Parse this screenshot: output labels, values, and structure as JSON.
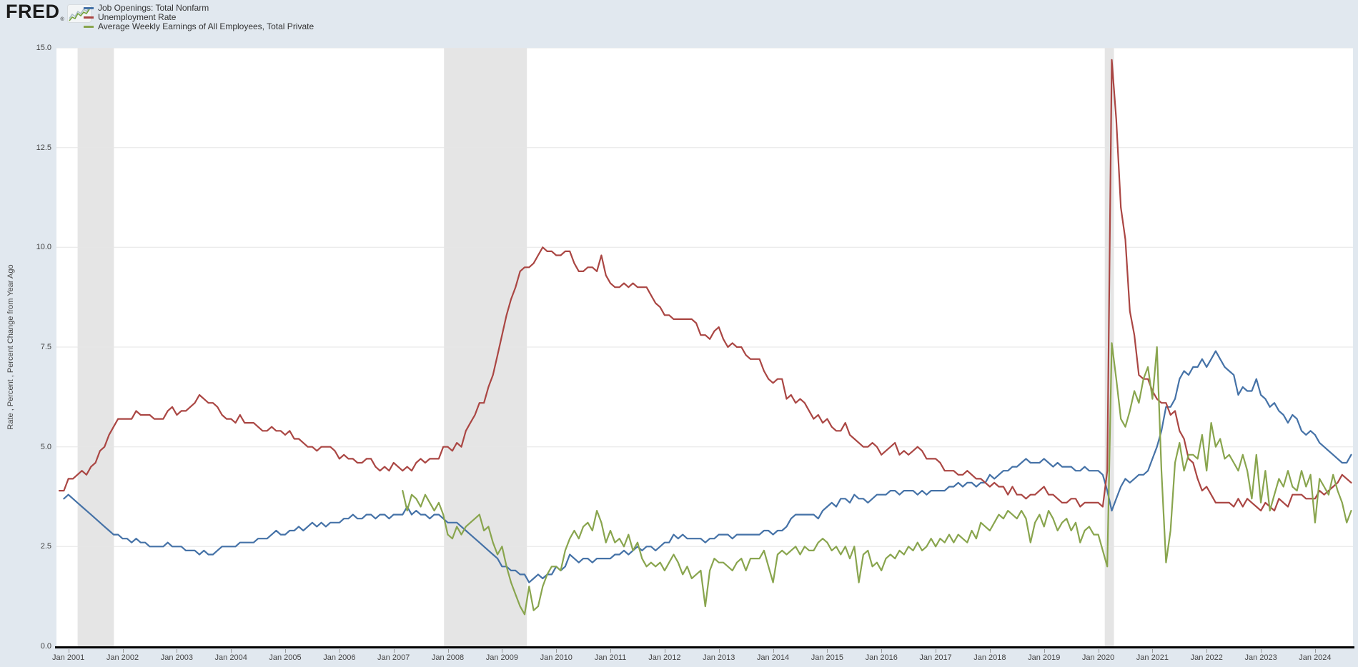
{
  "logo": {
    "text": "FRED",
    "registered": "®",
    "icon": "fred-squiggle-chart-icon"
  },
  "legend": {
    "items": [
      {
        "label": "Job Openings: Total Nonfarm",
        "color": "#4572a7"
      },
      {
        "label": "Unemployment Rate",
        "color": "#aa4643"
      },
      {
        "label": "Average Weekly Earnings of All Employees, Total Private",
        "color": "#89a54e"
      }
    ]
  },
  "y_axis": {
    "title": "Rate , Percent , Percent Change from Year Ago",
    "ticks": [
      {
        "label": "0.0",
        "value": 0
      },
      {
        "label": "2.5",
        "value": 2.5
      },
      {
        "label": "5.0",
        "value": 5
      },
      {
        "label": "7.5",
        "value": 7.5
      },
      {
        "label": "10.0",
        "value": 10
      },
      {
        "label": "12.5",
        "value": 12.5
      },
      {
        "label": "15.0",
        "value": 15
      }
    ]
  },
  "x_axis": {
    "ticks": [
      {
        "label": "Jan 2001",
        "year": 2001
      },
      {
        "label": "Jan 2002",
        "year": 2002
      },
      {
        "label": "Jan 2003",
        "year": 2003
      },
      {
        "label": "Jan 2004",
        "year": 2004
      },
      {
        "label": "Jan 2005",
        "year": 2005
      },
      {
        "label": "Jan 2006",
        "year": 2006
      },
      {
        "label": "Jan 2007",
        "year": 2007
      },
      {
        "label": "Jan 2008",
        "year": 2008
      },
      {
        "label": "Jan 2009",
        "year": 2009
      },
      {
        "label": "Jan 2010",
        "year": 2010
      },
      {
        "label": "Jan 2011",
        "year": 2011
      },
      {
        "label": "Jan 2012",
        "year": 2012
      },
      {
        "label": "Jan 2013",
        "year": 2013
      },
      {
        "label": "Jan 2014",
        "year": 2014
      },
      {
        "label": "Jan 2015",
        "year": 2015
      },
      {
        "label": "Jan 2016",
        "year": 2016
      },
      {
        "label": "Jan 2017",
        "year": 2017
      },
      {
        "label": "Jan 2018",
        "year": 2018
      },
      {
        "label": "Jan 2019",
        "year": 2019
      },
      {
        "label": "Jan 2020",
        "year": 2020
      },
      {
        "label": "Jan 2021",
        "year": 2021
      },
      {
        "label": "Jan 2022",
        "year": 2022
      },
      {
        "label": "Jan 2023",
        "year": 2023
      },
      {
        "label": "Jan 2024",
        "year": 2024
      }
    ]
  },
  "chart_data": {
    "type": "line",
    "title": "",
    "xlabel": "",
    "ylabel": "Rate , Percent , Percent Change from Year Ago",
    "xlim": [
      2000.78,
      2024.7
    ],
    "ylim": [
      0,
      15
    ],
    "grid": "horizontal",
    "gridlines": [
      2.5,
      5,
      7.5,
      10,
      12.5,
      15
    ],
    "grid_color": "#e6e6e6",
    "band_color": "#e5e5e5",
    "recession_bands": [
      {
        "start": 2001.17,
        "end": 2001.84
      },
      {
        "start": 2007.93,
        "end": 2009.46
      },
      {
        "start": 2020.12,
        "end": 2020.29
      }
    ],
    "series": [
      {
        "name": "Job Openings: Total Nonfarm",
        "color": "#4572a7",
        "start_year": 2000,
        "start_month": 12,
        "values": [
          3.7,
          3.8,
          3.7,
          3.6,
          3.5,
          3.4,
          3.3,
          3.2,
          3.1,
          3.0,
          2.9,
          2.8,
          2.8,
          2.7,
          2.7,
          2.6,
          2.7,
          2.6,
          2.6,
          2.5,
          2.5,
          2.5,
          2.5,
          2.6,
          2.5,
          2.5,
          2.5,
          2.4,
          2.4,
          2.4,
          2.3,
          2.4,
          2.3,
          2.3,
          2.4,
          2.5,
          2.5,
          2.5,
          2.5,
          2.6,
          2.6,
          2.6,
          2.6,
          2.7,
          2.7,
          2.7,
          2.8,
          2.9,
          2.8,
          2.8,
          2.9,
          2.9,
          3.0,
          2.9,
          3.0,
          3.1,
          3.0,
          3.1,
          3.0,
          3.1,
          3.1,
          3.1,
          3.2,
          3.2,
          3.3,
          3.2,
          3.2,
          3.3,
          3.3,
          3.2,
          3.3,
          3.3,
          3.2,
          3.3,
          3.3,
          3.3,
          3.5,
          3.3,
          3.4,
          3.3,
          3.3,
          3.2,
          3.3,
          3.3,
          3.2,
          3.1,
          3.1,
          3.1,
          3.0,
          2.9,
          2.8,
          2.7,
          2.6,
          2.5,
          2.4,
          2.3,
          2.2,
          2.0,
          2.0,
          1.9,
          1.9,
          1.8,
          1.8,
          1.6,
          1.7,
          1.8,
          1.7,
          1.8,
          1.8,
          2.0,
          1.9,
          2.0,
          2.3,
          2.2,
          2.1,
          2.2,
          2.2,
          2.1,
          2.2,
          2.2,
          2.2,
          2.2,
          2.3,
          2.3,
          2.4,
          2.3,
          2.4,
          2.5,
          2.4,
          2.5,
          2.5,
          2.4,
          2.5,
          2.6,
          2.6,
          2.8,
          2.7,
          2.8,
          2.7,
          2.7,
          2.7,
          2.7,
          2.6,
          2.7,
          2.7,
          2.8,
          2.8,
          2.8,
          2.7,
          2.8,
          2.8,
          2.8,
          2.8,
          2.8,
          2.8,
          2.9,
          2.9,
          2.8,
          2.9,
          2.9,
          3.0,
          3.2,
          3.3,
          3.3,
          3.3,
          3.3,
          3.3,
          3.2,
          3.4,
          3.5,
          3.6,
          3.5,
          3.7,
          3.7,
          3.6,
          3.8,
          3.7,
          3.7,
          3.6,
          3.7,
          3.8,
          3.8,
          3.8,
          3.9,
          3.9,
          3.8,
          3.9,
          3.9,
          3.9,
          3.8,
          3.9,
          3.8,
          3.9,
          3.9,
          3.9,
          3.9,
          4.0,
          4.0,
          4.1,
          4.0,
          4.1,
          4.1,
          4.0,
          4.1,
          4.1,
          4.3,
          4.2,
          4.3,
          4.4,
          4.4,
          4.5,
          4.5,
          4.6,
          4.7,
          4.6,
          4.6,
          4.6,
          4.7,
          4.6,
          4.5,
          4.6,
          4.5,
          4.5,
          4.5,
          4.4,
          4.4,
          4.5,
          4.4,
          4.4,
          4.4,
          4.3,
          3.9,
          3.4,
          3.7,
          4.0,
          4.2,
          4.1,
          4.2,
          4.3,
          4.3,
          4.4,
          4.7,
          5.0,
          5.4,
          6.0,
          6.0,
          6.2,
          6.7,
          6.9,
          6.8,
          7.0,
          7.0,
          7.2,
          7.0,
          7.2,
          7.4,
          7.2,
          7.0,
          6.9,
          6.8,
          6.3,
          6.5,
          6.4,
          6.4,
          6.7,
          6.3,
          6.2,
          6.0,
          6.1,
          5.9,
          5.8,
          5.6,
          5.8,
          5.7,
          5.4,
          5.3,
          5.4,
          5.3,
          5.1,
          5.0,
          4.9,
          4.8,
          4.7,
          4.6,
          4.6,
          4.8
        ]
      },
      {
        "name": "Unemployment Rate",
        "color": "#aa4643",
        "start_year": 2000,
        "start_month": 11,
        "values": [
          3.9,
          3.9,
          4.2,
          4.2,
          4.3,
          4.4,
          4.3,
          4.5,
          4.6,
          4.9,
          5.0,
          5.3,
          5.5,
          5.7,
          5.7,
          5.7,
          5.7,
          5.9,
          5.8,
          5.8,
          5.8,
          5.7,
          5.7,
          5.7,
          5.9,
          6.0,
          5.8,
          5.9,
          5.9,
          6.0,
          6.1,
          6.3,
          6.2,
          6.1,
          6.1,
          6.0,
          5.8,
          5.7,
          5.7,
          5.6,
          5.8,
          5.6,
          5.6,
          5.6,
          5.5,
          5.4,
          5.4,
          5.5,
          5.4,
          5.4,
          5.3,
          5.4,
          5.2,
          5.2,
          5.1,
          5.0,
          5.0,
          4.9,
          5.0,
          5.0,
          5.0,
          4.9,
          4.7,
          4.8,
          4.7,
          4.7,
          4.6,
          4.6,
          4.7,
          4.7,
          4.5,
          4.4,
          4.5,
          4.4,
          4.6,
          4.5,
          4.4,
          4.5,
          4.4,
          4.6,
          4.7,
          4.6,
          4.7,
          4.7,
          4.7,
          5.0,
          5.0,
          4.9,
          5.1,
          5.0,
          5.4,
          5.6,
          5.8,
          6.1,
          6.1,
          6.5,
          6.8,
          7.3,
          7.8,
          8.3,
          8.7,
          9.0,
          9.4,
          9.5,
          9.5,
          9.6,
          9.8,
          10.0,
          9.9,
          9.9,
          9.8,
          9.8,
          9.9,
          9.9,
          9.6,
          9.4,
          9.4,
          9.5,
          9.5,
          9.4,
          9.8,
          9.3,
          9.1,
          9.0,
          9.0,
          9.1,
          9.0,
          9.1,
          9.0,
          9.0,
          9.0,
          8.8,
          8.6,
          8.5,
          8.3,
          8.3,
          8.2,
          8.2,
          8.2,
          8.2,
          8.2,
          8.1,
          7.8,
          7.8,
          7.7,
          7.9,
          8.0,
          7.7,
          7.5,
          7.6,
          7.5,
          7.5,
          7.3,
          7.2,
          7.2,
          7.2,
          6.9,
          6.7,
          6.6,
          6.7,
          6.7,
          6.2,
          6.3,
          6.1,
          6.2,
          6.1,
          5.9,
          5.7,
          5.8,
          5.6,
          5.7,
          5.5,
          5.4,
          5.4,
          5.6,
          5.3,
          5.2,
          5.1,
          5.0,
          5.0,
          5.1,
          5.0,
          4.8,
          4.9,
          5.0,
          5.1,
          4.8,
          4.9,
          4.8,
          4.9,
          5.0,
          4.9,
          4.7,
          4.7,
          4.7,
          4.6,
          4.4,
          4.4,
          4.4,
          4.3,
          4.3,
          4.4,
          4.3,
          4.2,
          4.2,
          4.1,
          4.0,
          4.1,
          4.0,
          4.0,
          3.8,
          4.0,
          3.8,
          3.8,
          3.7,
          3.8,
          3.8,
          3.9,
          4.0,
          3.8,
          3.8,
          3.7,
          3.6,
          3.6,
          3.7,
          3.7,
          3.5,
          3.6,
          3.6,
          3.6,
          3.6,
          3.5,
          4.4,
          14.7,
          13.2,
          11.0,
          10.2,
          8.4,
          7.8,
          6.8,
          6.7,
          6.7,
          6.4,
          6.2,
          6.1,
          6.1,
          5.8,
          5.9,
          5.4,
          5.2,
          4.7,
          4.6,
          4.2,
          3.9,
          4.0,
          3.8,
          3.6,
          3.6,
          3.6,
          3.6,
          3.5,
          3.7,
          3.5,
          3.7,
          3.6,
          3.5,
          3.4,
          3.6,
          3.5,
          3.4,
          3.7,
          3.6,
          3.5,
          3.8,
          3.8,
          3.8,
          3.7,
          3.7,
          3.7,
          3.9,
          3.8,
          3.9,
          4.0,
          4.1,
          4.3,
          4.2,
          4.1
        ]
      },
      {
        "name": "Average Weekly Earnings of All Employees, Total Private",
        "color": "#89a54e",
        "start_year": 2007,
        "start_month": 3,
        "values": [
          3.9,
          3.4,
          3.8,
          3.7,
          3.5,
          3.8,
          3.6,
          3.4,
          3.6,
          3.3,
          2.8,
          2.7,
          3.0,
          2.8,
          3.0,
          3.1,
          3.2,
          3.3,
          2.9,
          3.0,
          2.6,
          2.3,
          2.5,
          2.0,
          1.6,
          1.3,
          1.0,
          0.8,
          1.5,
          0.9,
          1.0,
          1.5,
          1.8,
          2.0,
          2.0,
          1.9,
          2.4,
          2.7,
          2.9,
          2.7,
          3.0,
          3.1,
          2.9,
          3.4,
          3.1,
          2.6,
          2.9,
          2.6,
          2.7,
          2.5,
          2.8,
          2.4,
          2.6,
          2.2,
          2.0,
          2.1,
          2.0,
          2.1,
          1.9,
          2.1,
          2.3,
          2.1,
          1.8,
          2.0,
          1.7,
          1.8,
          1.9,
          1.0,
          1.9,
          2.2,
          2.1,
          2.1,
          2.0,
          1.9,
          2.1,
          2.2,
          1.9,
          2.2,
          2.2,
          2.2,
          2.4,
          2.0,
          1.6,
          2.3,
          2.4,
          2.3,
          2.4,
          2.5,
          2.3,
          2.5,
          2.4,
          2.4,
          2.6,
          2.7,
          2.6,
          2.4,
          2.5,
          2.3,
          2.5,
          2.2,
          2.5,
          1.6,
          2.3,
          2.4,
          2.0,
          2.1,
          1.9,
          2.2,
          2.3,
          2.2,
          2.4,
          2.3,
          2.5,
          2.4,
          2.6,
          2.4,
          2.5,
          2.7,
          2.5,
          2.7,
          2.6,
          2.8,
          2.6,
          2.8,
          2.7,
          2.6,
          2.9,
          2.7,
          3.1,
          3.0,
          2.9,
          3.1,
          3.3,
          3.2,
          3.4,
          3.3,
          3.2,
          3.4,
          3.2,
          2.6,
          3.1,
          3.3,
          3.0,
          3.4,
          3.2,
          2.9,
          3.1,
          3.2,
          2.9,
          3.1,
          2.6,
          2.9,
          3.0,
          2.8,
          2.8,
          2.4,
          2.0,
          7.6,
          6.7,
          5.7,
          5.5,
          5.9,
          6.4,
          6.1,
          6.7,
          7.0,
          6.2,
          7.5,
          4.4,
          2.1,
          2.9,
          4.6,
          5.1,
          4.4,
          4.8,
          4.8,
          4.7,
          5.3,
          4.4,
          5.6,
          5.0,
          5.2,
          4.7,
          4.8,
          4.6,
          4.4,
          4.8,
          4.4,
          3.7,
          4.8,
          3.6,
          4.4,
          3.4,
          3.8,
          4.2,
          4.0,
          4.4,
          4.0,
          3.9,
          4.4,
          4.0,
          4.3,
          3.1,
          4.2,
          4.0,
          3.8,
          4.3,
          3.9,
          3.6,
          3.1,
          3.4
        ]
      }
    ]
  }
}
